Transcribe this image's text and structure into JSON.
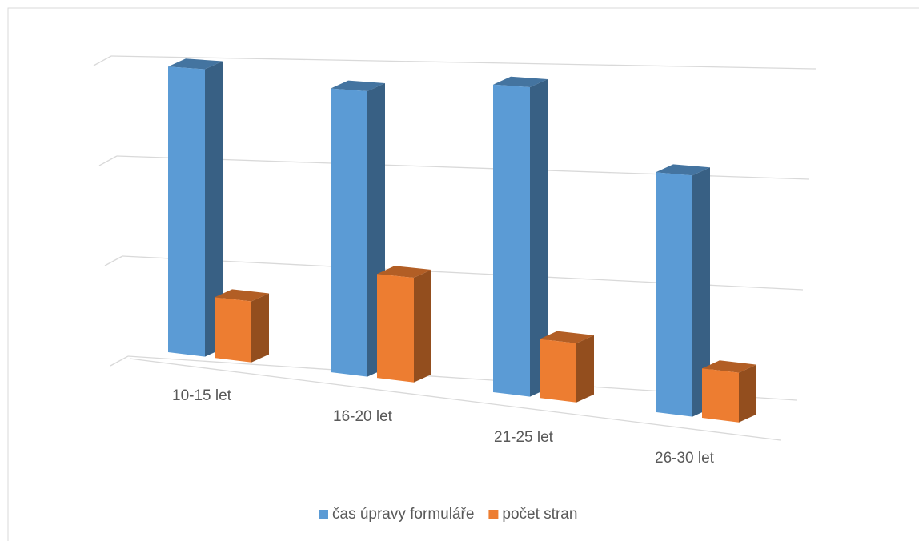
{
  "chart_data": {
    "type": "bar3d",
    "categories": [
      "10-15 let",
      "16-20 let",
      "21-25 let",
      "26-30 let"
    ],
    "series": [
      {
        "name": "čas úpravy formuláře",
        "color": "#5b9bd5",
        "values": [
          2.85,
          2.75,
          2.9,
          2.2
        ]
      },
      {
        "name": "počet stran",
        "color": "#ed7d31",
        "values": [
          0.6,
          1.0,
          0.55,
          0.45
        ]
      }
    ],
    "ylim": [
      0,
      3
    ],
    "yticks": [
      0,
      1,
      2,
      3
    ],
    "grid": true,
    "legend": "bottom"
  }
}
